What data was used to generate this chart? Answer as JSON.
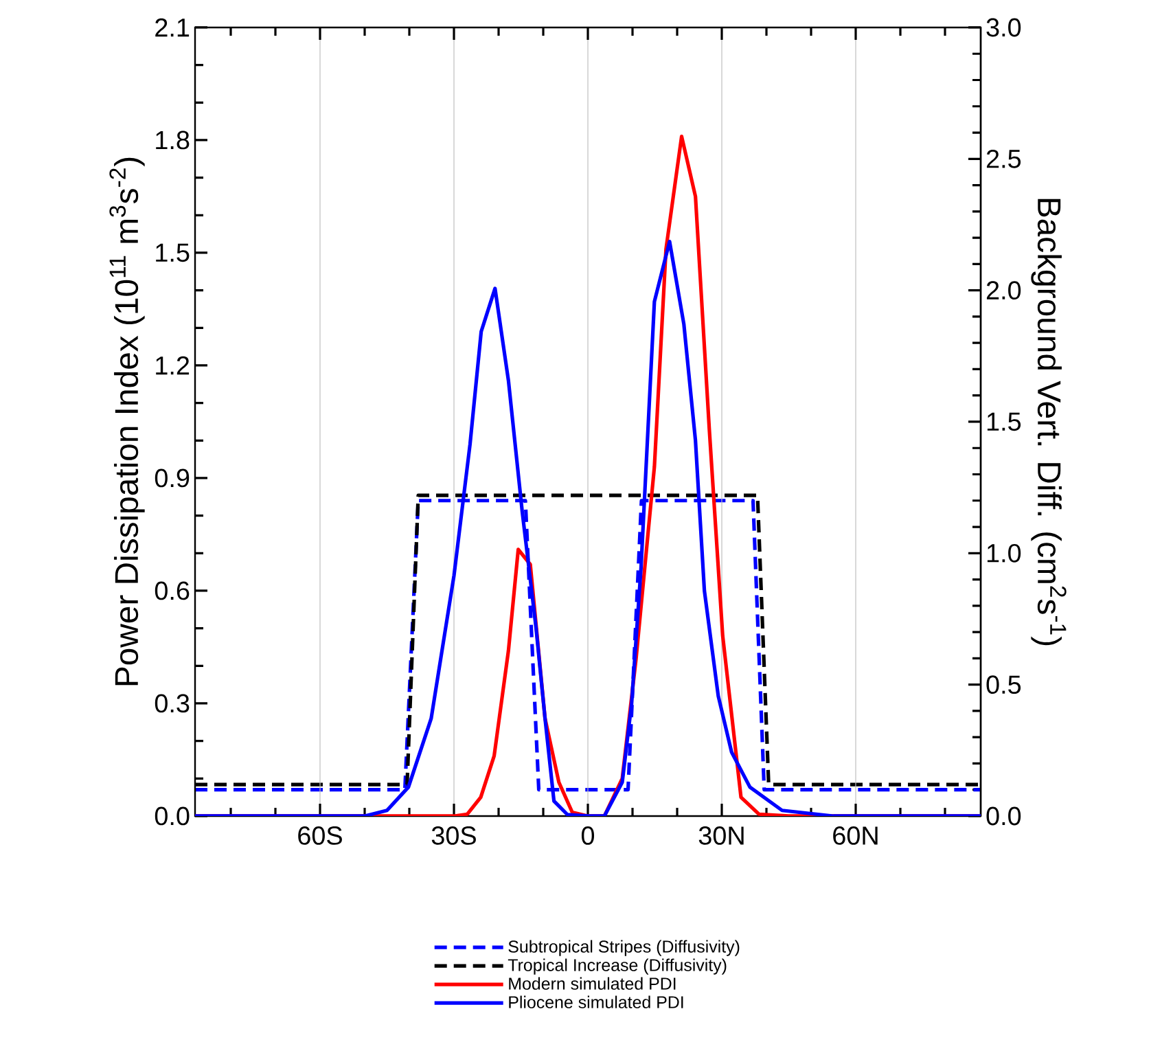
{
  "chart_data": {
    "type": "line",
    "xlim": [
      -88,
      88
    ],
    "xticks": [
      {
        "value": -80,
        "label": null
      },
      {
        "value": -70,
        "label": null
      },
      {
        "value": -60,
        "label": "60S"
      },
      {
        "value": -50,
        "label": null
      },
      {
        "value": -40,
        "label": null
      },
      {
        "value": -30,
        "label": "30S"
      },
      {
        "value": -20,
        "label": null
      },
      {
        "value": -10,
        "label": null
      },
      {
        "value": 0,
        "label": "0"
      },
      {
        "value": 10,
        "label": null
      },
      {
        "value": 20,
        "label": null
      },
      {
        "value": 30,
        "label": "30N"
      },
      {
        "value": 40,
        "label": null
      },
      {
        "value": 50,
        "label": null
      },
      {
        "value": 60,
        "label": "60N"
      },
      {
        "value": 70,
        "label": null
      },
      {
        "value": 80,
        "label": null
      }
    ],
    "ylim": [
      0,
      2.1
    ],
    "yticks": [
      {
        "value": 0,
        "label": "0.0"
      },
      {
        "value": 0.1,
        "label": null
      },
      {
        "value": 0.2,
        "label": null
      },
      {
        "value": 0.3,
        "label": "0.3"
      },
      {
        "value": 0.4,
        "label": null
      },
      {
        "value": 0.5,
        "label": null
      },
      {
        "value": 0.6,
        "label": "0.6"
      },
      {
        "value": 0.7,
        "label": null
      },
      {
        "value": 0.8,
        "label": null
      },
      {
        "value": 0.9,
        "label": "0.9"
      },
      {
        "value": 1.0,
        "label": null
      },
      {
        "value": 1.1,
        "label": null
      },
      {
        "value": 1.2,
        "label": "1.2"
      },
      {
        "value": 1.3,
        "label": null
      },
      {
        "value": 1.4,
        "label": null
      },
      {
        "value": 1.5,
        "label": "1.5"
      },
      {
        "value": 1.6,
        "label": null
      },
      {
        "value": 1.7,
        "label": null
      },
      {
        "value": 1.8,
        "label": "1.8"
      },
      {
        "value": 1.9,
        "label": null
      },
      {
        "value": 2.0,
        "label": null
      },
      {
        "value": 2.1,
        "label": "2.1"
      }
    ],
    "y2lim": [
      0,
      3.0
    ],
    "y2ticks": [
      {
        "value": 0,
        "label": "0.0"
      },
      {
        "value": 0.1,
        "label": null
      },
      {
        "value": 0.2,
        "label": null
      },
      {
        "value": 0.3,
        "label": null
      },
      {
        "value": 0.4,
        "label": null
      },
      {
        "value": 0.5,
        "label": "0.5"
      },
      {
        "value": 0.6,
        "label": null
      },
      {
        "value": 0.7,
        "label": null
      },
      {
        "value": 0.8,
        "label": null
      },
      {
        "value": 0.9,
        "label": null
      },
      {
        "value": 1.0,
        "label": "1.0"
      },
      {
        "value": 1.1,
        "label": null
      },
      {
        "value": 1.2,
        "label": null
      },
      {
        "value": 1.3,
        "label": null
      },
      {
        "value": 1.4,
        "label": null
      },
      {
        "value": 1.5,
        "label": "1.5"
      },
      {
        "value": 1.6,
        "label": null
      },
      {
        "value": 1.7,
        "label": null
      },
      {
        "value": 1.8,
        "label": null
      },
      {
        "value": 1.9,
        "label": null
      },
      {
        "value": 2.0,
        "label": "2.0"
      },
      {
        "value": 2.1,
        "label": null
      },
      {
        "value": 2.2,
        "label": null
      },
      {
        "value": 2.3,
        "label": null
      },
      {
        "value": 2.4,
        "label": null
      },
      {
        "value": 2.5,
        "label": "2.5"
      },
      {
        "value": 2.6,
        "label": null
      },
      {
        "value": 2.7,
        "label": null
      },
      {
        "value": 2.8,
        "label": null
      },
      {
        "value": 2.9,
        "label": null
      },
      {
        "value": 3.0,
        "label": "3.0"
      }
    ],
    "ylabel": "Power Dissipation Index (10$^{11}$ m$^{3}$s$^{-2}$)",
    "y2label": "Background Vert. Diff. (cm$^{2}$s$^{-1}$)",
    "grid": "x",
    "legend": "bottom",
    "series": [
      {
        "name": "Subtropical Stripes (Diffusivity)",
        "color": "#0000ff",
        "axis": "y2",
        "line_style": "dashed",
        "x": [
          -88,
          -41,
          -38,
          -14,
          -11,
          9,
          12,
          37,
          39.5,
          88
        ],
        "values": [
          0.1,
          0.1,
          1.2,
          1.2,
          0.1,
          0.1,
          1.2,
          1.2,
          0.1,
          0.1
        ]
      },
      {
        "name": "Tropical Increase (Diffusivity)",
        "color": "#000000",
        "axis": "y2",
        "line_style": "dashed",
        "x": [
          -88,
          -40.5,
          -38,
          38,
          40.5,
          88
        ],
        "values": [
          0.12,
          0.12,
          1.22,
          1.22,
          0.12,
          0.12
        ]
      },
      {
        "name": "Modern simulated PDI",
        "color": "#ff0000",
        "line_style": "solid",
        "x": [
          -88,
          -30,
          -27,
          -24,
          -21,
          -17.8,
          -15.6,
          -12.9,
          -9.6,
          -6.5,
          -3.5,
          0,
          3.7,
          7.7,
          10.8,
          14.9,
          17.5,
          21,
          24.1,
          27.2,
          30.2,
          34.3,
          38.3,
          45,
          88
        ],
        "values": [
          0,
          0,
          0.005,
          0.05,
          0.16,
          0.44,
          0.71,
          0.67,
          0.26,
          0.09,
          0.01,
          0,
          0,
          0.1,
          0.42,
          0.93,
          1.51,
          1.81,
          1.65,
          1.03,
          0.48,
          0.05,
          0.005,
          0,
          0
        ]
      },
      {
        "name": "Pliocene simulated PDI",
        "color": "#0000ff",
        "line_style": "solid",
        "x": [
          -88,
          -50,
          -45,
          -40.2,
          -35.1,
          -30,
          -26.4,
          -23.9,
          -20.8,
          -17.8,
          -14.7,
          -11.6,
          -9.6,
          -7.6,
          -4.6,
          0,
          3.7,
          7.7,
          9.8,
          11.9,
          14.9,
          18.3,
          21.5,
          24.1,
          26.1,
          29.2,
          32.2,
          36.3,
          43.5,
          55,
          88
        ],
        "values": [
          0,
          0,
          0.015,
          0.077,
          0.26,
          0.64,
          0.99,
          1.29,
          1.405,
          1.16,
          0.81,
          0.5,
          0.26,
          0.04,
          0.004,
          0,
          0,
          0.09,
          0.3,
          0.66,
          1.37,
          1.53,
          1.31,
          1.0,
          0.6,
          0.32,
          0.17,
          0.077,
          0.015,
          0,
          0
        ]
      }
    ]
  }
}
